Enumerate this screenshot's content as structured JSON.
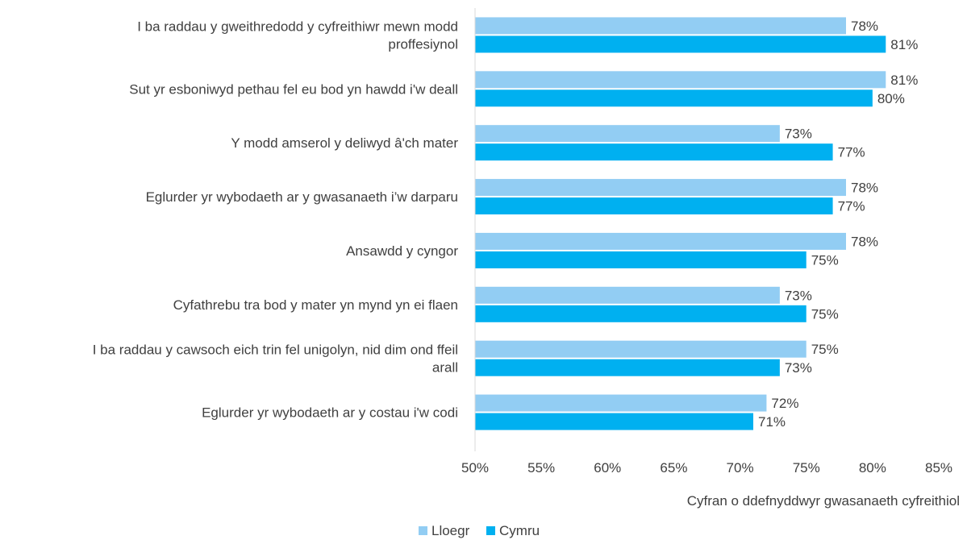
{
  "chart_data": {
    "type": "bar",
    "orientation": "horizontal",
    "categories": [
      [
        "I ba raddau y gweithredodd y cyfreithiwr mewn modd",
        "proffesiynol"
      ],
      [
        "Sut yr esboniwyd pethau fel eu bod yn hawdd i'w deall"
      ],
      [
        "Y modd amserol y deliwyd â'ch mater"
      ],
      [
        "Eglurder yr wybodaeth ar y gwasanaeth i’w darparu"
      ],
      [
        "Ansawdd y cyngor"
      ],
      [
        "Cyfathrebu tra bod y mater yn mynd yn ei flaen"
      ],
      [
        "I ba raddau y cawsoch eich trin fel unigolyn, nid dim ond ffeil",
        "arall"
      ],
      [
        "Eglurder yr wybodaeth ar y costau i'w codi"
      ]
    ],
    "series": [
      {
        "name": "Lloegr",
        "color": "#92CDF3",
        "values": [
          78,
          81,
          73,
          78,
          78,
          73,
          75,
          72
        ]
      },
      {
        "name": "Cymru",
        "color": "#00B0F0",
        "values": [
          81,
          80,
          77,
          77,
          75,
          75,
          73,
          71
        ]
      }
    ],
    "xlim": [
      50,
      85
    ],
    "xticks": [
      50,
      55,
      60,
      65,
      70,
      75,
      80,
      85
    ],
    "tick_suffix": "%",
    "value_suffix": "%",
    "xlabel": "Cyfran o ddefnyddwyr gwasanaeth cyfreithiol",
    "ylabel": "",
    "title": "",
    "grid": false,
    "legend": "bottom"
  }
}
